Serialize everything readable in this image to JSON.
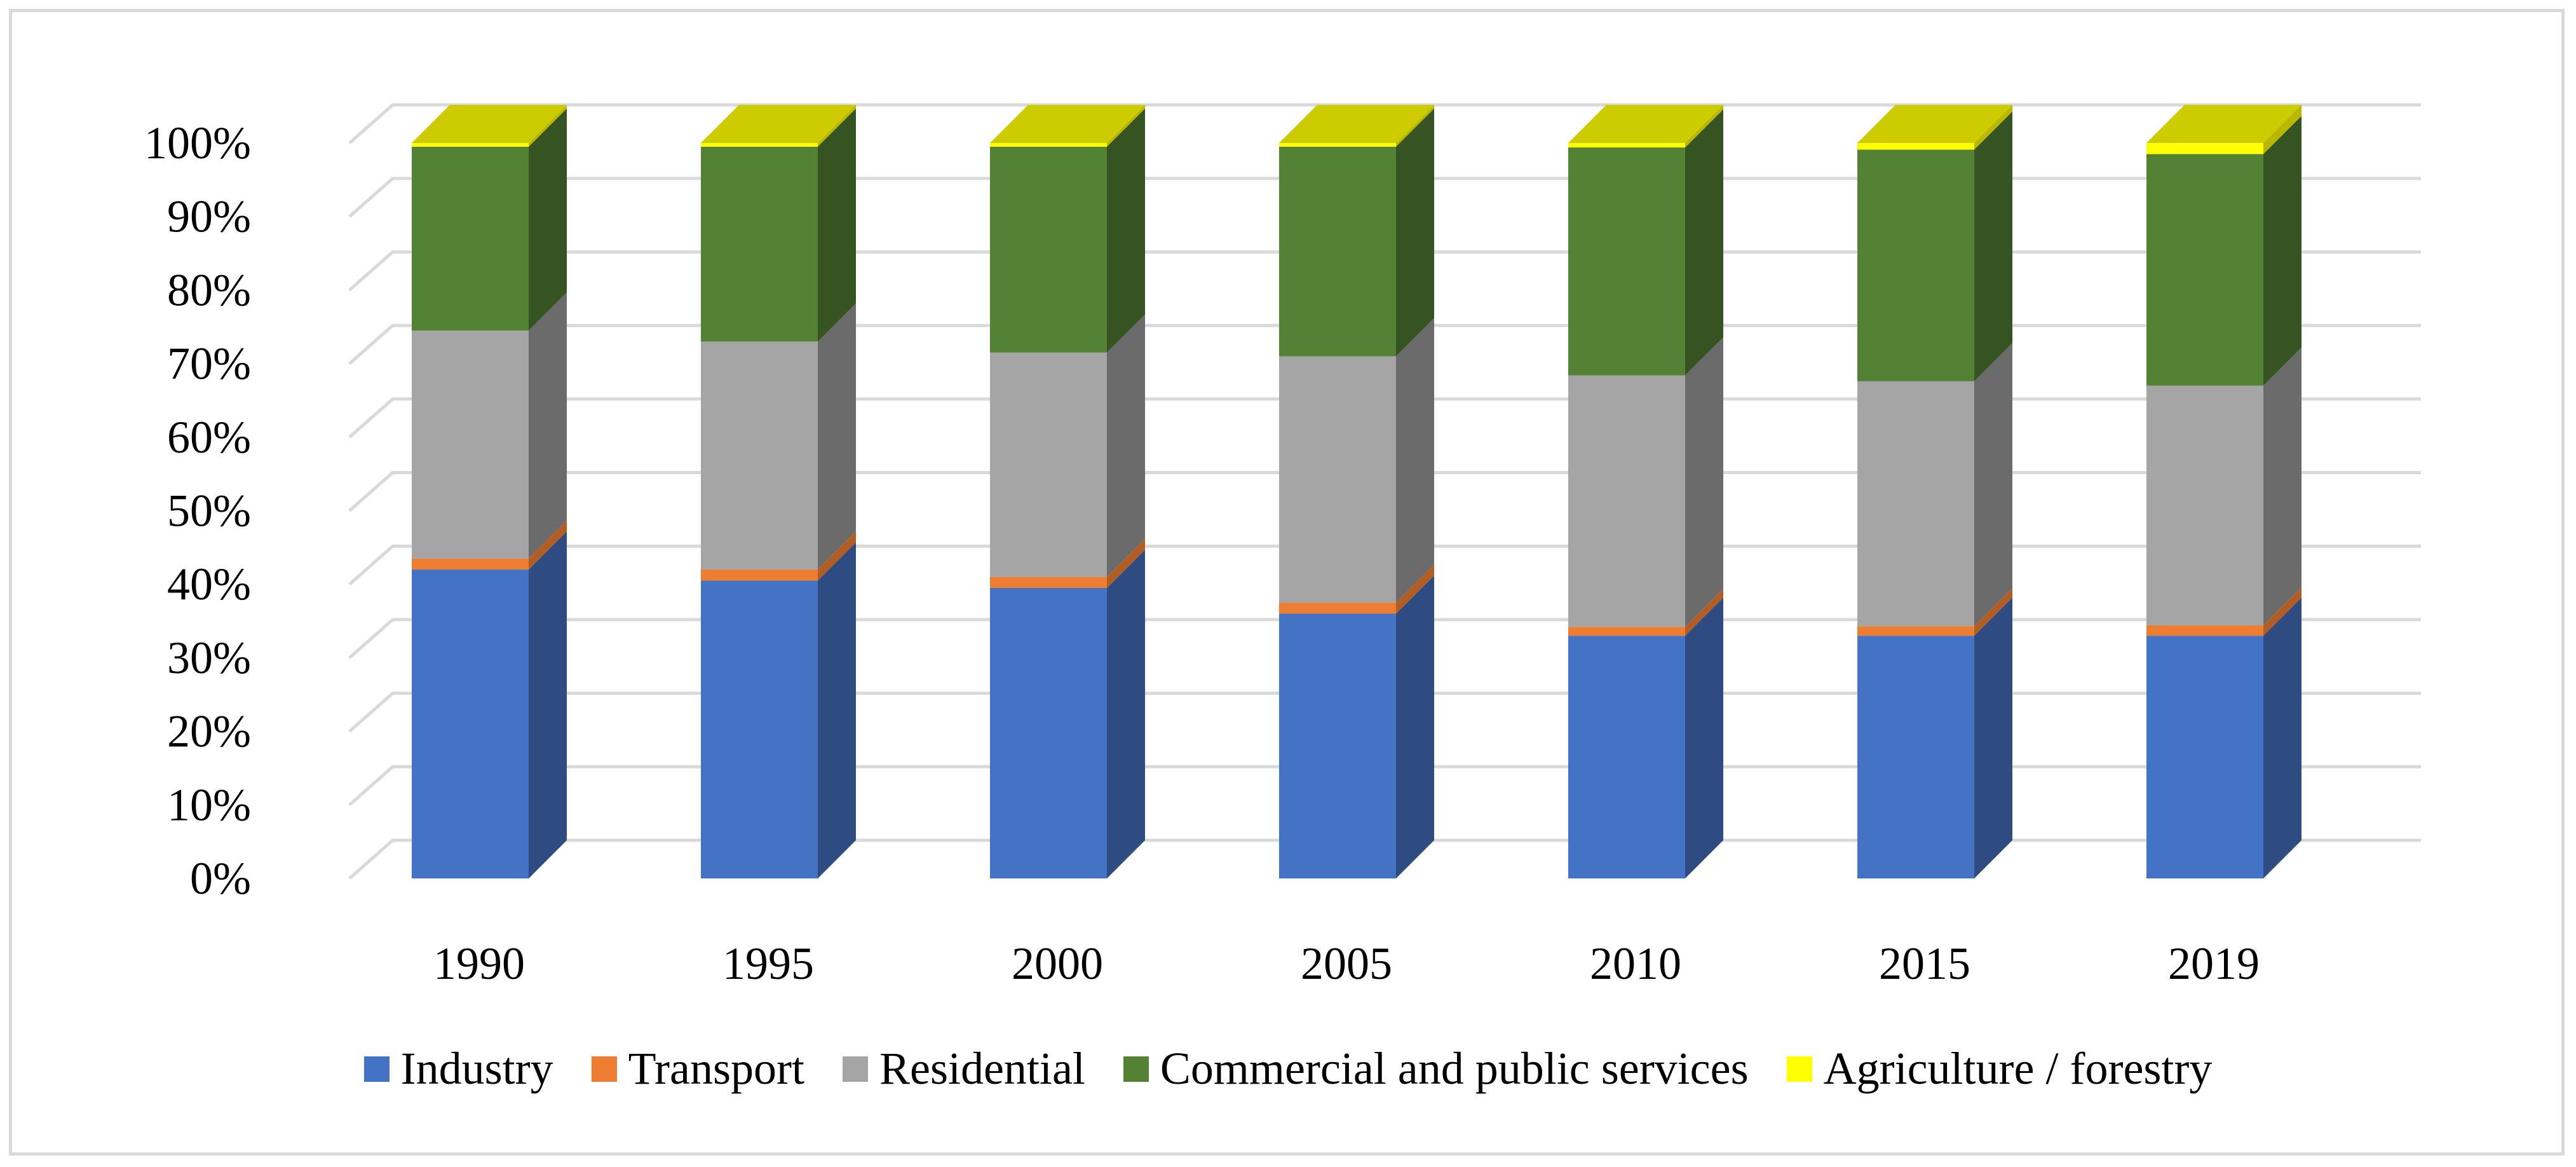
{
  "chart_data": {
    "type": "bar",
    "stacked": true,
    "style": "3d-column-100-percent",
    "title": "",
    "xlabel": "",
    "ylabel": "",
    "ylim": [
      0,
      100
    ],
    "y_ticks": [
      "0%",
      "10%",
      "20%",
      "30%",
      "40%",
      "50%",
      "60%",
      "70%",
      "80%",
      "90%",
      "100%"
    ],
    "categories": [
      "1990",
      "1995",
      "2000",
      "2005",
      "2010",
      "2015",
      "2019"
    ],
    "series": [
      {
        "name": "Industry",
        "color": "#4472c4",
        "side_color": "#2e4b82",
        "top_color": "#3a64ad",
        "values": [
          42.0,
          40.5,
          39.5,
          36.0,
          33.0,
          33.0,
          33.0
        ]
      },
      {
        "name": "Transport",
        "color": "#ed7d31",
        "side_color": "#b25d24",
        "top_color": "#d46f2b",
        "values": [
          1.5,
          1.5,
          1.5,
          1.5,
          1.2,
          1.3,
          1.4
        ]
      },
      {
        "name": "Residential",
        "color": "#a5a5a5",
        "side_color": "#6b6b6b",
        "top_color": "#949494",
        "values": [
          31.0,
          31.0,
          30.5,
          33.5,
          34.2,
          33.3,
          32.6
        ]
      },
      {
        "name": "Commercial and public services",
        "color": "#548235",
        "side_color": "#365422",
        "top_color": "#4a742f",
        "values": [
          25.0,
          26.5,
          28.0,
          28.5,
          31.0,
          31.5,
          31.5
        ]
      },
      {
        "name": "Agriculture / forestry",
        "color": "#ffff00",
        "side_color": "#b8b800",
        "top_color": "#cccc00",
        "values": [
          0.5,
          0.5,
          0.5,
          0.5,
          0.6,
          0.9,
          1.5
        ]
      }
    ],
    "grid": true,
    "legend_position": "bottom"
  }
}
